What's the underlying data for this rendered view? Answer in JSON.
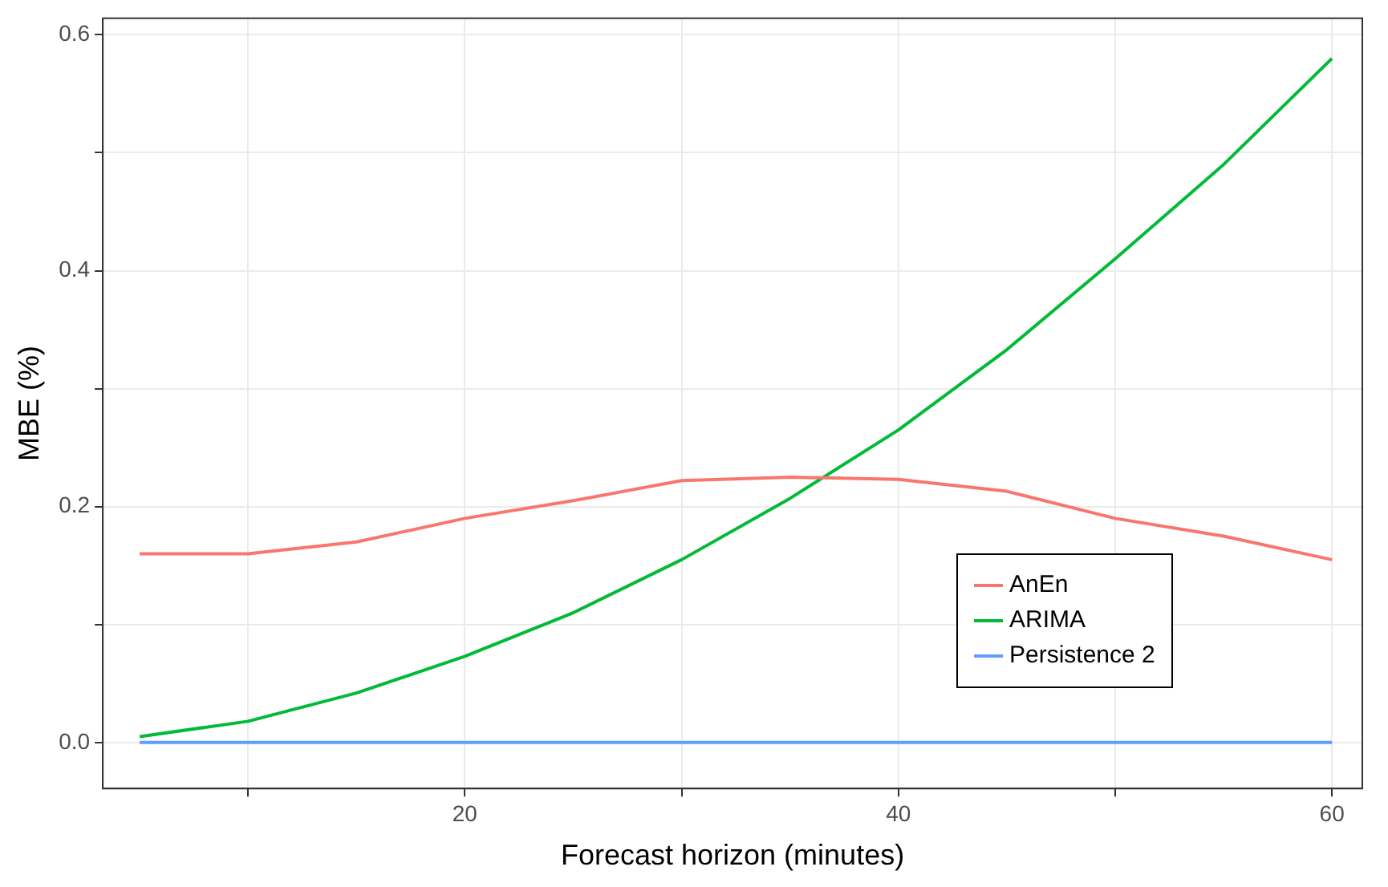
{
  "chart_data": {
    "type": "line",
    "xlabel": "Forecast horizon (minutes)",
    "ylabel": "MBE (%)",
    "x": [
      5,
      10,
      15,
      20,
      25,
      30,
      35,
      40,
      45,
      50,
      55,
      60
    ],
    "series": [
      {
        "name": "AnEn",
        "color": "#f8766d",
        "values": [
          0.16,
          0.16,
          0.17,
          0.19,
          0.205,
          0.222,
          0.225,
          0.223,
          0.213,
          0.19,
          0.175,
          0.155
        ]
      },
      {
        "name": "ARIMA",
        "color": "#00ba38",
        "values": [
          0.005,
          0.018,
          0.042,
          0.073,
          0.11,
          0.155,
          0.207,
          0.265,
          0.333,
          0.41,
          0.49,
          0.58
        ]
      },
      {
        "name": "Persistence 2",
        "color": "#619cff",
        "values": [
          0,
          0,
          0,
          0,
          0,
          0,
          0,
          0,
          0,
          0,
          0,
          0
        ]
      }
    ],
    "xlim": [
      3.3,
      61.4
    ],
    "xticks": [
      {
        "value": 10,
        "label": null
      },
      20,
      {
        "value": 30,
        "label": null
      },
      40,
      {
        "value": 50,
        "label": null
      },
      60
    ],
    "ylim": [
      -0.039,
      0.614
    ],
    "yticks": [
      "0.0",
      {
        "value": 0.1,
        "label": null
      },
      {
        "value": 0.2,
        "label": "0.2"
      },
      {
        "value": 0.3,
        "label": null
      },
      {
        "value": 0.4,
        "label": "0.4"
      },
      {
        "value": 0.5,
        "label": null
      },
      {
        "value": 0.6,
        "label": "0.6"
      }
    ],
    "grid": true,
    "legend": "right",
    "marker": "none",
    "line_style": "solid"
  }
}
